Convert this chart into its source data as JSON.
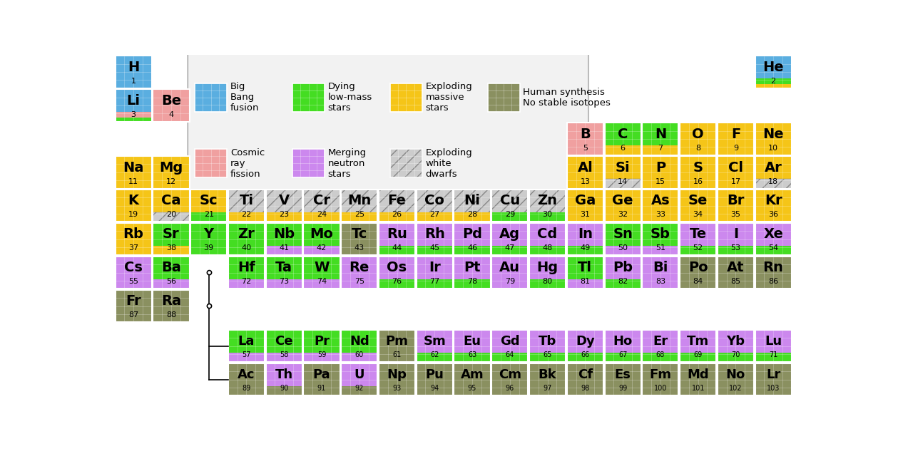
{
  "colors": {
    "big_bang": "#5aaee0",
    "dying_low_mass": "#44dd22",
    "exploding_massive": "#f5c518",
    "cosmic_ray": "#f0a0a0",
    "merging_neutron": "#cc88ee",
    "exploding_white": "#cccccc",
    "human_synthesis": "#8a9060",
    "none": "#ffffff"
  },
  "elements": [
    {
      "sym": "H",
      "num": 1,
      "row": 0,
      "col": 0,
      "colors": [
        "big_bang"
      ]
    },
    {
      "sym": "He",
      "num": 2,
      "row": 0,
      "col": 17,
      "colors": [
        "big_bang",
        "dying_low_mass",
        "exploding_massive"
      ]
    },
    {
      "sym": "Li",
      "num": 3,
      "row": 1,
      "col": 0,
      "colors": [
        "big_bang",
        "cosmic_ray",
        "dying_low_mass"
      ]
    },
    {
      "sym": "Be",
      "num": 4,
      "row": 1,
      "col": 1,
      "colors": [
        "cosmic_ray"
      ]
    },
    {
      "sym": "B",
      "num": 5,
      "row": 2,
      "col": 12,
      "colors": [
        "cosmic_ray"
      ]
    },
    {
      "sym": "C",
      "num": 6,
      "row": 2,
      "col": 13,
      "colors": [
        "dying_low_mass",
        "exploding_massive"
      ]
    },
    {
      "sym": "N",
      "num": 7,
      "row": 2,
      "col": 14,
      "colors": [
        "dying_low_mass",
        "exploding_massive"
      ]
    },
    {
      "sym": "O",
      "num": 8,
      "row": 2,
      "col": 15,
      "colors": [
        "exploding_massive"
      ]
    },
    {
      "sym": "F",
      "num": 9,
      "row": 2,
      "col": 16,
      "colors": [
        "exploding_massive"
      ]
    },
    {
      "sym": "Ne",
      "num": 10,
      "row": 2,
      "col": 17,
      "colors": [
        "exploding_massive"
      ]
    },
    {
      "sym": "Na",
      "num": 11,
      "row": 3,
      "col": 0,
      "colors": [
        "exploding_massive"
      ]
    },
    {
      "sym": "Mg",
      "num": 12,
      "row": 3,
      "col": 1,
      "colors": [
        "exploding_massive"
      ]
    },
    {
      "sym": "Al",
      "num": 13,
      "row": 3,
      "col": 12,
      "colors": [
        "exploding_massive"
      ]
    },
    {
      "sym": "Si",
      "num": 14,
      "row": 3,
      "col": 13,
      "colors": [
        "exploding_massive",
        "exploding_white"
      ]
    },
    {
      "sym": "P",
      "num": 15,
      "row": 3,
      "col": 14,
      "colors": [
        "exploding_massive"
      ]
    },
    {
      "sym": "S",
      "num": 16,
      "row": 3,
      "col": 15,
      "colors": [
        "exploding_massive"
      ]
    },
    {
      "sym": "Cl",
      "num": 17,
      "row": 3,
      "col": 16,
      "colors": [
        "exploding_massive"
      ]
    },
    {
      "sym": "Ar",
      "num": 18,
      "row": 3,
      "col": 17,
      "colors": [
        "exploding_massive",
        "exploding_white"
      ]
    },
    {
      "sym": "K",
      "num": 19,
      "row": 4,
      "col": 0,
      "colors": [
        "exploding_massive"
      ]
    },
    {
      "sym": "Ca",
      "num": 20,
      "row": 4,
      "col": 1,
      "colors": [
        "exploding_massive",
        "exploding_white"
      ]
    },
    {
      "sym": "Sc",
      "num": 21,
      "row": 4,
      "col": 2,
      "colors": [
        "exploding_massive",
        "dying_low_mass"
      ]
    },
    {
      "sym": "Ti",
      "num": 22,
      "row": 4,
      "col": 3,
      "colors": [
        "exploding_white",
        "exploding_massive"
      ]
    },
    {
      "sym": "V",
      "num": 23,
      "row": 4,
      "col": 4,
      "colors": [
        "exploding_white",
        "exploding_massive"
      ]
    },
    {
      "sym": "Cr",
      "num": 24,
      "row": 4,
      "col": 5,
      "colors": [
        "exploding_white",
        "exploding_massive"
      ]
    },
    {
      "sym": "Mn",
      "num": 25,
      "row": 4,
      "col": 6,
      "colors": [
        "exploding_white",
        "exploding_massive"
      ]
    },
    {
      "sym": "Fe",
      "num": 26,
      "row": 4,
      "col": 7,
      "colors": [
        "exploding_white",
        "exploding_massive"
      ]
    },
    {
      "sym": "Co",
      "num": 27,
      "row": 4,
      "col": 8,
      "colors": [
        "exploding_white",
        "exploding_massive"
      ]
    },
    {
      "sym": "Ni",
      "num": 28,
      "row": 4,
      "col": 9,
      "colors": [
        "exploding_white",
        "exploding_massive"
      ]
    },
    {
      "sym": "Cu",
      "num": 29,
      "row": 4,
      "col": 10,
      "colors": [
        "exploding_white",
        "dying_low_mass"
      ]
    },
    {
      "sym": "Zn",
      "num": 30,
      "row": 4,
      "col": 11,
      "colors": [
        "exploding_white",
        "dying_low_mass"
      ]
    },
    {
      "sym": "Ga",
      "num": 31,
      "row": 4,
      "col": 12,
      "colors": [
        "exploding_massive"
      ]
    },
    {
      "sym": "Ge",
      "num": 32,
      "row": 4,
      "col": 13,
      "colors": [
        "exploding_massive"
      ]
    },
    {
      "sym": "As",
      "num": 33,
      "row": 4,
      "col": 14,
      "colors": [
        "exploding_massive"
      ]
    },
    {
      "sym": "Se",
      "num": 34,
      "row": 4,
      "col": 15,
      "colors": [
        "exploding_massive"
      ]
    },
    {
      "sym": "Br",
      "num": 35,
      "row": 4,
      "col": 16,
      "colors": [
        "exploding_massive"
      ]
    },
    {
      "sym": "Kr",
      "num": 36,
      "row": 4,
      "col": 17,
      "colors": [
        "exploding_massive"
      ]
    },
    {
      "sym": "Rb",
      "num": 37,
      "row": 5,
      "col": 0,
      "colors": [
        "exploding_massive"
      ]
    },
    {
      "sym": "Sr",
      "num": 38,
      "row": 5,
      "col": 1,
      "colors": [
        "dying_low_mass",
        "exploding_massive"
      ]
    },
    {
      "sym": "Y",
      "num": 39,
      "row": 5,
      "col": 2,
      "colors": [
        "dying_low_mass"
      ]
    },
    {
      "sym": "Zr",
      "num": 40,
      "row": 5,
      "col": 3,
      "colors": [
        "dying_low_mass"
      ]
    },
    {
      "sym": "Nb",
      "num": 41,
      "row": 5,
      "col": 4,
      "colors": [
        "dying_low_mass",
        "merging_neutron"
      ]
    },
    {
      "sym": "Mo",
      "num": 42,
      "row": 5,
      "col": 5,
      "colors": [
        "dying_low_mass",
        "merging_neutron"
      ]
    },
    {
      "sym": "Tc",
      "num": 43,
      "row": 5,
      "col": 6,
      "colors": [
        "human_synthesis"
      ]
    },
    {
      "sym": "Ru",
      "num": 44,
      "row": 5,
      "col": 7,
      "colors": [
        "merging_neutron",
        "dying_low_mass"
      ]
    },
    {
      "sym": "Rh",
      "num": 45,
      "row": 5,
      "col": 8,
      "colors": [
        "merging_neutron",
        "dying_low_mass"
      ]
    },
    {
      "sym": "Pd",
      "num": 46,
      "row": 5,
      "col": 9,
      "colors": [
        "merging_neutron",
        "dying_low_mass"
      ]
    },
    {
      "sym": "Ag",
      "num": 47,
      "row": 5,
      "col": 10,
      "colors": [
        "merging_neutron",
        "dying_low_mass"
      ]
    },
    {
      "sym": "Cd",
      "num": 48,
      "row": 5,
      "col": 11,
      "colors": [
        "merging_neutron",
        "dying_low_mass"
      ]
    },
    {
      "sym": "In",
      "num": 49,
      "row": 5,
      "col": 12,
      "colors": [
        "merging_neutron",
        "dying_low_mass"
      ]
    },
    {
      "sym": "Sn",
      "num": 50,
      "row": 5,
      "col": 13,
      "colors": [
        "dying_low_mass",
        "merging_neutron"
      ]
    },
    {
      "sym": "Sb",
      "num": 51,
      "row": 5,
      "col": 14,
      "colors": [
        "dying_low_mass",
        "merging_neutron"
      ]
    },
    {
      "sym": "Te",
      "num": 52,
      "row": 5,
      "col": 15,
      "colors": [
        "merging_neutron",
        "dying_low_mass"
      ]
    },
    {
      "sym": "I",
      "num": 53,
      "row": 5,
      "col": 16,
      "colors": [
        "merging_neutron",
        "dying_low_mass"
      ]
    },
    {
      "sym": "Xe",
      "num": 54,
      "row": 5,
      "col": 17,
      "colors": [
        "merging_neutron",
        "dying_low_mass"
      ]
    },
    {
      "sym": "Cs",
      "num": 55,
      "row": 6,
      "col": 0,
      "colors": [
        "merging_neutron"
      ]
    },
    {
      "sym": "Ba",
      "num": 56,
      "row": 6,
      "col": 1,
      "colors": [
        "dying_low_mass",
        "merging_neutron"
      ]
    },
    {
      "sym": "Hf",
      "num": 72,
      "row": 6,
      "col": 3,
      "colors": [
        "dying_low_mass",
        "merging_neutron"
      ]
    },
    {
      "sym": "Ta",
      "num": 73,
      "row": 6,
      "col": 4,
      "colors": [
        "dying_low_mass",
        "merging_neutron"
      ]
    },
    {
      "sym": "W",
      "num": 74,
      "row": 6,
      "col": 5,
      "colors": [
        "dying_low_mass",
        "merging_neutron"
      ]
    },
    {
      "sym": "Re",
      "num": 75,
      "row": 6,
      "col": 6,
      "colors": [
        "merging_neutron"
      ]
    },
    {
      "sym": "Os",
      "num": 76,
      "row": 6,
      "col": 7,
      "colors": [
        "merging_neutron",
        "dying_low_mass"
      ]
    },
    {
      "sym": "Ir",
      "num": 77,
      "row": 6,
      "col": 8,
      "colors": [
        "merging_neutron",
        "dying_low_mass"
      ]
    },
    {
      "sym": "Pt",
      "num": 78,
      "row": 6,
      "col": 9,
      "colors": [
        "merging_neutron",
        "dying_low_mass"
      ]
    },
    {
      "sym": "Au",
      "num": 79,
      "row": 6,
      "col": 10,
      "colors": [
        "merging_neutron"
      ]
    },
    {
      "sym": "Hg",
      "num": 80,
      "row": 6,
      "col": 11,
      "colors": [
        "merging_neutron",
        "dying_low_mass"
      ]
    },
    {
      "sym": "Tl",
      "num": 81,
      "row": 6,
      "col": 12,
      "colors": [
        "dying_low_mass",
        "merging_neutron"
      ]
    },
    {
      "sym": "Pb",
      "num": 82,
      "row": 6,
      "col": 13,
      "colors": [
        "merging_neutron",
        "dying_low_mass"
      ]
    },
    {
      "sym": "Bi",
      "num": 83,
      "row": 6,
      "col": 14,
      "colors": [
        "merging_neutron"
      ]
    },
    {
      "sym": "Po",
      "num": 84,
      "row": 6,
      "col": 15,
      "colors": [
        "human_synthesis"
      ]
    },
    {
      "sym": "At",
      "num": 85,
      "row": 6,
      "col": 16,
      "colors": [
        "human_synthesis"
      ]
    },
    {
      "sym": "Rn",
      "num": 86,
      "row": 6,
      "col": 17,
      "colors": [
        "human_synthesis"
      ]
    },
    {
      "sym": "Fr",
      "num": 87,
      "row": 7,
      "col": 0,
      "colors": [
        "human_synthesis"
      ]
    },
    {
      "sym": "Ra",
      "num": 88,
      "row": 7,
      "col": 1,
      "colors": [
        "human_synthesis"
      ]
    },
    {
      "sym": "La",
      "num": 57,
      "row": 8,
      "col": 3,
      "colors": [
        "dying_low_mass",
        "merging_neutron"
      ]
    },
    {
      "sym": "Ce",
      "num": 58,
      "row": 8,
      "col": 4,
      "colors": [
        "dying_low_mass",
        "merging_neutron"
      ]
    },
    {
      "sym": "Pr",
      "num": 59,
      "row": 8,
      "col": 5,
      "colors": [
        "dying_low_mass",
        "merging_neutron"
      ]
    },
    {
      "sym": "Nd",
      "num": 60,
      "row": 8,
      "col": 6,
      "colors": [
        "dying_low_mass",
        "merging_neutron"
      ]
    },
    {
      "sym": "Pm",
      "num": 61,
      "row": 8,
      "col": 7,
      "colors": [
        "human_synthesis"
      ]
    },
    {
      "sym": "Sm",
      "num": 62,
      "row": 8,
      "col": 8,
      "colors": [
        "merging_neutron",
        "dying_low_mass"
      ]
    },
    {
      "sym": "Eu",
      "num": 63,
      "row": 8,
      "col": 9,
      "colors": [
        "merging_neutron",
        "dying_low_mass"
      ]
    },
    {
      "sym": "Gd",
      "num": 64,
      "row": 8,
      "col": 10,
      "colors": [
        "merging_neutron",
        "dying_low_mass"
      ]
    },
    {
      "sym": "Tb",
      "num": 65,
      "row": 8,
      "col": 11,
      "colors": [
        "merging_neutron",
        "dying_low_mass"
      ]
    },
    {
      "sym": "Dy",
      "num": 66,
      "row": 8,
      "col": 12,
      "colors": [
        "merging_neutron",
        "dying_low_mass"
      ]
    },
    {
      "sym": "Ho",
      "num": 67,
      "row": 8,
      "col": 13,
      "colors": [
        "merging_neutron",
        "dying_low_mass"
      ]
    },
    {
      "sym": "Er",
      "num": 68,
      "row": 8,
      "col": 14,
      "colors": [
        "merging_neutron",
        "dying_low_mass"
      ]
    },
    {
      "sym": "Tm",
      "num": 69,
      "row": 8,
      "col": 15,
      "colors": [
        "merging_neutron",
        "dying_low_mass"
      ]
    },
    {
      "sym": "Yb",
      "num": 70,
      "row": 8,
      "col": 16,
      "colors": [
        "merging_neutron",
        "dying_low_mass"
      ]
    },
    {
      "sym": "Lu",
      "num": 71,
      "row": 8,
      "col": 17,
      "colors": [
        "merging_neutron",
        "dying_low_mass"
      ]
    },
    {
      "sym": "Ac",
      "num": 89,
      "row": 9,
      "col": 3,
      "colors": [
        "human_synthesis"
      ]
    },
    {
      "sym": "Th",
      "num": 90,
      "row": 9,
      "col": 4,
      "colors": [
        "merging_neutron",
        "human_synthesis"
      ]
    },
    {
      "sym": "Pa",
      "num": 91,
      "row": 9,
      "col": 5,
      "colors": [
        "human_synthesis"
      ]
    },
    {
      "sym": "U",
      "num": 92,
      "row": 9,
      "col": 6,
      "colors": [
        "merging_neutron",
        "human_synthesis"
      ]
    },
    {
      "sym": "Np",
      "num": 93,
      "row": 9,
      "col": 7,
      "colors": [
        "human_synthesis"
      ]
    },
    {
      "sym": "Pu",
      "num": 94,
      "row": 9,
      "col": 8,
      "colors": [
        "human_synthesis"
      ]
    },
    {
      "sym": "Am",
      "num": 95,
      "row": 9,
      "col": 9,
      "colors": [
        "human_synthesis"
      ]
    },
    {
      "sym": "Cm",
      "num": 96,
      "row": 9,
      "col": 10,
      "colors": [
        "human_synthesis"
      ]
    },
    {
      "sym": "Bk",
      "num": 97,
      "row": 9,
      "col": 11,
      "colors": [
        "human_synthesis"
      ]
    },
    {
      "sym": "Cf",
      "num": 98,
      "row": 9,
      "col": 12,
      "colors": [
        "human_synthesis"
      ]
    },
    {
      "sym": "Es",
      "num": 99,
      "row": 9,
      "col": 13,
      "colors": [
        "human_synthesis"
      ]
    },
    {
      "sym": "Fm",
      "num": 100,
      "row": 9,
      "col": 14,
      "colors": [
        "human_synthesis"
      ]
    },
    {
      "sym": "Md",
      "num": 101,
      "row": 9,
      "col": 15,
      "colors": [
        "human_synthesis"
      ]
    },
    {
      "sym": "No",
      "num": 102,
      "row": 9,
      "col": 16,
      "colors": [
        "human_synthesis"
      ]
    },
    {
      "sym": "Lr",
      "num": 103,
      "row": 9,
      "col": 17,
      "colors": [
        "human_synthesis"
      ]
    }
  ]
}
